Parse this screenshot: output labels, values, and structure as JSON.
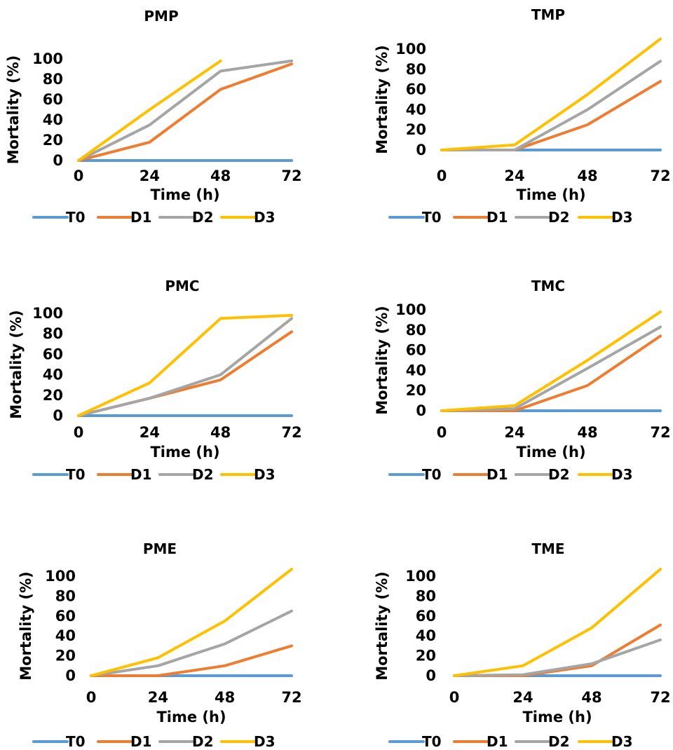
{
  "chart_data": [
    {
      "type": "line",
      "title": "PMP",
      "xlabel": "Time (h)",
      "ylabel": "Mortality (%)",
      "x": [
        0,
        24,
        48,
        72
      ],
      "xticks": [
        "0",
        "24",
        "48",
        "72"
      ],
      "yticks": [
        "0",
        "20",
        "40",
        "60",
        "80",
        "100"
      ],
      "ylim": [
        0,
        100
      ],
      "series": [
        {
          "name": "T0",
          "color": "#5B9BD5",
          "values": [
            0,
            0,
            0,
            0
          ]
        },
        {
          "name": "D1",
          "color": "#ED7D31",
          "values": [
            0,
            18,
            70,
            95
          ]
        },
        {
          "name": "D2",
          "color": "#A5A5A5",
          "values": [
            0,
            35,
            88,
            98
          ]
        },
        {
          "name": "D3",
          "color": "#FFC000",
          "values": [
            0,
            50,
            98,
            null
          ]
        }
      ],
      "legend": "bottom",
      "grid": false
    },
    {
      "type": "line",
      "title": "TMP",
      "xlabel": "Time (h)",
      "ylabel": "Mortality (%)",
      "x": [
        0,
        24,
        48,
        72
      ],
      "xticks": [
        "0",
        "24",
        "48",
        "72"
      ],
      "yticks": [
        "0",
        "20",
        "40",
        "60",
        "80",
        "100"
      ],
      "ylim": [
        0,
        100
      ],
      "series": [
        {
          "name": "T0",
          "color": "#5B9BD5",
          "values": [
            0,
            0,
            0,
            0
          ]
        },
        {
          "name": "D1",
          "color": "#ED7D31",
          "values": [
            0,
            0,
            25,
            68
          ]
        },
        {
          "name": "D2",
          "color": "#A5A5A5",
          "values": [
            0,
            0,
            40,
            88
          ]
        },
        {
          "name": "D3",
          "color": "#FFC000",
          "values": [
            0,
            5,
            55,
            110
          ]
        }
      ],
      "legend": "bottom",
      "grid": false
    },
    {
      "type": "line",
      "title": "PMC",
      "xlabel": "Time (h)",
      "ylabel": "Mortality (%)",
      "x": [
        0,
        24,
        48,
        72
      ],
      "xticks": [
        "0",
        "24",
        "48",
        "72"
      ],
      "yticks": [
        "0",
        "20",
        "40",
        "60",
        "80",
        "100"
      ],
      "ylim": [
        0,
        100
      ],
      "series": [
        {
          "name": "T0",
          "color": "#5B9BD5",
          "values": [
            0,
            0,
            0,
            0
          ]
        },
        {
          "name": "D1",
          "color": "#ED7D31",
          "values": [
            0,
            17,
            35,
            82
          ]
        },
        {
          "name": "D2",
          "color": "#A5A5A5",
          "values": [
            0,
            17,
            40,
            95
          ]
        },
        {
          "name": "D3",
          "color": "#FFC000",
          "values": [
            0,
            32,
            95,
            98
          ]
        }
      ],
      "legend": "bottom",
      "grid": false
    },
    {
      "type": "line",
      "title": "TMC",
      "xlabel": "Time (h)",
      "ylabel": "Mortality (%)",
      "x": [
        0,
        24,
        48,
        72
      ],
      "xticks": [
        "0",
        "24",
        "48",
        "72"
      ],
      "yticks": [
        "0",
        "20",
        "40",
        "60",
        "80",
        "100"
      ],
      "ylim": [
        0,
        100
      ],
      "series": [
        {
          "name": "T0",
          "color": "#5B9BD5",
          "values": [
            0,
            0,
            0,
            0
          ]
        },
        {
          "name": "D1",
          "color": "#ED7D31",
          "values": [
            0,
            0,
            25,
            74
          ]
        },
        {
          "name": "D2",
          "color": "#A5A5A5",
          "values": [
            0,
            2,
            42,
            83
          ]
        },
        {
          "name": "D3",
          "color": "#FFC000",
          "values": [
            0,
            5,
            50,
            98
          ]
        }
      ],
      "legend": "bottom",
      "grid": false
    },
    {
      "type": "line",
      "title": "PME",
      "xlabel": "Time (h)",
      "ylabel": "Mortality (%)",
      "x": [
        0,
        24,
        48,
        72
      ],
      "xticks": [
        "0",
        "24",
        "48",
        "72"
      ],
      "yticks": [
        "0",
        "20",
        "40",
        "60",
        "80",
        "100"
      ],
      "ylim": [
        0,
        100
      ],
      "series": [
        {
          "name": "T0",
          "color": "#5B9BD5",
          "values": [
            0,
            0,
            0,
            0
          ]
        },
        {
          "name": "D1",
          "color": "#ED7D31",
          "values": [
            0,
            0,
            10,
            30
          ]
        },
        {
          "name": "D2",
          "color": "#A5A5A5",
          "values": [
            0,
            10,
            32,
            65
          ]
        },
        {
          "name": "D3",
          "color": "#FFC000",
          "values": [
            0,
            18,
            55,
            107
          ]
        }
      ],
      "legend": "bottom",
      "grid": false
    },
    {
      "type": "line",
      "title": "TME",
      "xlabel": "Time (h)",
      "ylabel": "Mortality (%)",
      "x": [
        0,
        24,
        48,
        72
      ],
      "xticks": [
        "0",
        "24",
        "48",
        "72"
      ],
      "yticks": [
        "0",
        "20",
        "40",
        "60",
        "80",
        "100"
      ],
      "ylim": [
        0,
        100
      ],
      "series": [
        {
          "name": "T0",
          "color": "#5B9BD5",
          "values": [
            0,
            0,
            0,
            0
          ]
        },
        {
          "name": "D1",
          "color": "#ED7D31",
          "values": [
            0,
            0,
            10,
            51
          ]
        },
        {
          "name": "D2",
          "color": "#A5A5A5",
          "values": [
            0,
            1,
            12,
            36
          ]
        },
        {
          "name": "D3",
          "color": "#FFC000",
          "values": [
            0,
            10,
            48,
            107
          ]
        }
      ],
      "legend": "bottom",
      "grid": false
    }
  ]
}
